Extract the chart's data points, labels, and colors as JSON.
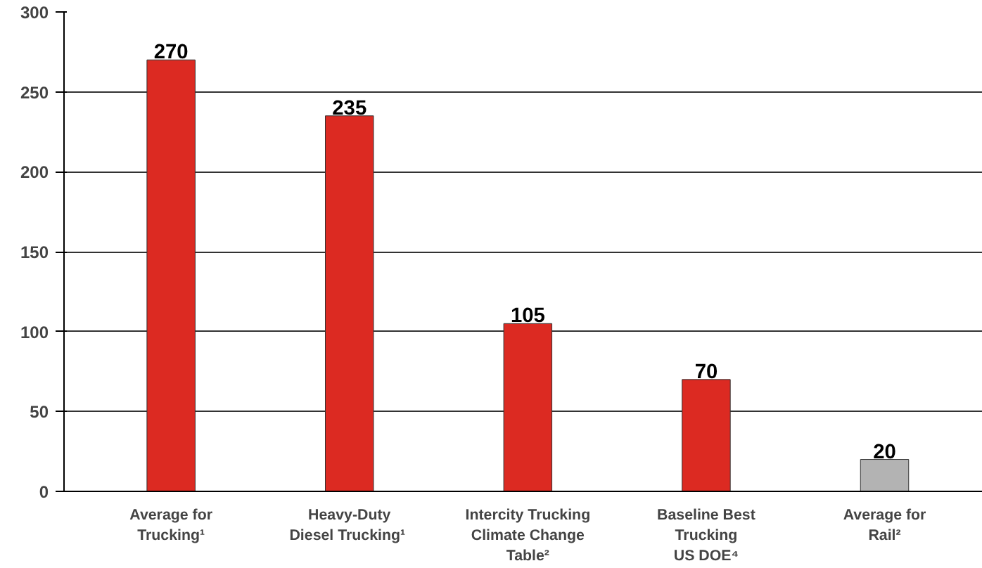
{
  "chart_data": {
    "type": "bar",
    "categories": [
      "Average for\nTrucking¹",
      "Heavy-Duty\nDiesel  Trucking¹",
      "Intercity Trucking\nClimate Change\nTable²",
      "Baseline Best\nTrucking\nUS DOE⁴",
      "Average for\nRail²"
    ],
    "values": [
      270,
      235,
      105,
      70,
      20
    ],
    "colors": [
      "#dc2a22",
      "#dc2a22",
      "#dc2a22",
      "#dc2a22",
      "#b3b3b3"
    ],
    "data_labels": true,
    "ylim": [
      0,
      300
    ],
    "yticks": [
      0,
      50,
      100,
      150,
      200,
      250,
      300
    ],
    "grid": "y"
  }
}
